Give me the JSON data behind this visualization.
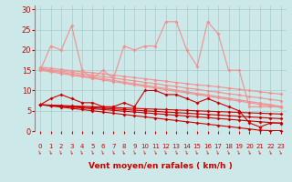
{
  "bg_color": "#cce8e8",
  "grid_color": "#aacccc",
  "xlabel": "Vent moyen/en rafales ( km/h )",
  "xlabel_color": "#cc0000",
  "ylabel_ticks": [
    0,
    5,
    10,
    15,
    20,
    25,
    30
  ],
  "xlim": [
    -0.5,
    23.5
  ],
  "ylim": [
    0,
    31
  ],
  "lines_light_pink": [
    {
      "y": [
        15,
        21,
        20,
        26,
        15,
        13,
        15,
        13,
        21,
        20,
        21,
        21,
        27,
        27,
        20,
        16,
        27,
        24,
        15,
        15,
        6,
        6,
        6,
        6
      ],
      "color": "#f09090"
    },
    {
      "y": [
        15.3,
        14.9,
        14.5,
        14.1,
        13.7,
        13.3,
        12.9,
        12.5,
        12.1,
        11.7,
        11.3,
        10.9,
        10.5,
        10.1,
        9.7,
        9.3,
        8.9,
        8.5,
        8.1,
        7.7,
        7.3,
        6.9,
        6.5,
        6.1
      ],
      "color": "#f09090"
    },
    {
      "y": [
        15.5,
        15.1,
        14.8,
        14.5,
        14.1,
        13.8,
        13.4,
        13.1,
        12.7,
        12.4,
        12.0,
        11.7,
        11.3,
        11.0,
        10.6,
        10.3,
        9.9,
        9.6,
        9.2,
        8.9,
        8.5,
        8.2,
        7.8,
        7.5
      ],
      "color": "#f09090"
    },
    {
      "y": [
        15.8,
        15.5,
        15.2,
        14.9,
        14.6,
        14.4,
        14.1,
        13.8,
        13.5,
        13.2,
        12.9,
        12.6,
        12.3,
        12.0,
        11.7,
        11.4,
        11.2,
        10.9,
        10.6,
        10.3,
        10.0,
        9.7,
        9.4,
        9.1
      ],
      "color": "#f09090"
    },
    {
      "y": [
        15.0,
        14.6,
        14.2,
        13.8,
        13.4,
        13.0,
        12.6,
        12.2,
        11.8,
        11.4,
        11.0,
        10.6,
        10.2,
        9.8,
        9.4,
        9.0,
        8.6,
        8.2,
        7.8,
        7.4,
        7.0,
        6.6,
        6.2,
        5.8
      ],
      "color": "#f09090"
    }
  ],
  "lines_dark_red": [
    {
      "y": [
        6.5,
        8,
        9,
        8,
        7,
        7,
        6,
        6,
        7,
        6,
        10,
        10,
        9,
        9,
        8,
        7,
        8,
        7,
        6,
        5,
        2,
        1,
        2,
        2
      ],
      "color": "#cc0000"
    },
    {
      "y": [
        6.5,
        6.3,
        6.1,
        5.9,
        5.7,
        5.5,
        5.3,
        5.1,
        4.9,
        4.7,
        4.5,
        4.3,
        4.1,
        3.9,
        3.7,
        3.5,
        3.3,
        3.1,
        2.9,
        2.7,
        2.5,
        2.3,
        2.1,
        1.9
      ],
      "color": "#cc0000"
    },
    {
      "y": [
        6.5,
        6.4,
        6.3,
        6.2,
        6.1,
        6.0,
        5.9,
        5.8,
        5.7,
        5.6,
        5.5,
        5.4,
        5.3,
        5.2,
        5.1,
        5.0,
        4.9,
        4.8,
        4.7,
        4.6,
        4.5,
        4.4,
        4.3,
        4.2
      ],
      "color": "#cc0000"
    },
    {
      "y": [
        6.5,
        6.35,
        6.2,
        6.05,
        5.9,
        5.75,
        5.6,
        5.45,
        5.3,
        5.15,
        5.0,
        4.85,
        4.7,
        4.55,
        4.4,
        4.25,
        4.1,
        3.95,
        3.8,
        3.65,
        3.5,
        3.35,
        3.2,
        3.05
      ],
      "color": "#cc0000"
    },
    {
      "y": [
        6.5,
        6.2,
        5.9,
        5.6,
        5.3,
        5.0,
        4.7,
        4.4,
        4.1,
        3.8,
        3.5,
        3.2,
        2.9,
        2.6,
        2.3,
        2.0,
        1.7,
        1.4,
        1.1,
        0.8,
        0.5,
        0.2,
        0.1,
        0.1
      ],
      "color": "#cc0000"
    }
  ],
  "tick_color": "#cc0000",
  "wind_symbols": [
    "↴",
    "↴",
    "↴",
    "↴",
    "↴",
    "↴",
    "↴",
    "↴",
    "↴",
    "↴",
    "↴",
    "↴",
    "↴",
    "↴",
    "↴",
    "↴",
    "↴",
    "↴",
    "↴",
    "↴",
    "↴",
    "↴",
    "↴",
    "↴"
  ]
}
